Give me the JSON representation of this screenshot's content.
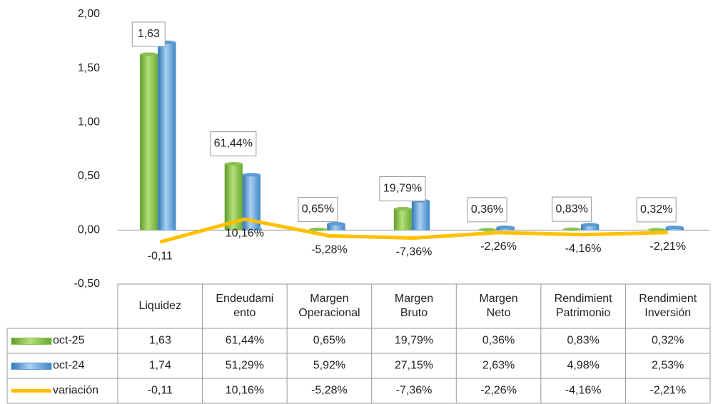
{
  "chart_data": {
    "type": "bar",
    "categories": [
      [
        "Liquidez"
      ],
      [
        "Endeudami",
        "ento"
      ],
      [
        "Margen",
        "Operacional"
      ],
      [
        "Margen",
        "Bruto"
      ],
      [
        "Margen",
        "Neto"
      ],
      [
        "Rendimient",
        "Patrimonio"
      ],
      [
        "Rendimient",
        "Inversión"
      ]
    ],
    "series": [
      {
        "name": "oct-25",
        "color": "#8cc152",
        "values": [
          1.63,
          0.6144,
          0.0065,
          0.1979,
          0.0036,
          0.0083,
          0.0032
        ],
        "value_labels": [
          "1,63",
          "61,44%",
          "0,65%",
          "19,79%",
          "0,36%",
          "0,83%",
          "0,32%"
        ]
      },
      {
        "name": "oct-24",
        "color": "#5b9bd5",
        "values": [
          1.74,
          0.5129,
          0.0592,
          0.2715,
          0.0263,
          0.0498,
          0.0253
        ],
        "value_labels": [
          "1,74",
          "51,29%",
          "5,92%",
          "27,15%",
          "2,63%",
          "4,98%",
          "2,53%"
        ]
      },
      {
        "name": "variación",
        "type": "line",
        "color": "#ffc000",
        "values": [
          -0.11,
          0.1016,
          -0.0528,
          -0.0736,
          -0.0226,
          -0.0416,
          -0.0221
        ],
        "value_labels": [
          "-0,11",
          "10,16%",
          "-5,28%",
          "-7,36%",
          "-2,26%",
          "-4,16%",
          "-2,21%"
        ]
      }
    ],
    "ylim": [
      -0.5,
      2
    ],
    "yticks": [
      {
        "value": -0.5,
        "label": "-0,50"
      },
      {
        "value": 0,
        "label": "0,00"
      },
      {
        "value": 0.5,
        "label": "0,50"
      },
      {
        "value": 1,
        "label": "1,00"
      },
      {
        "value": 1.5,
        "label": "1,50"
      },
      {
        "value": 2,
        "label": "2,00"
      }
    ]
  }
}
